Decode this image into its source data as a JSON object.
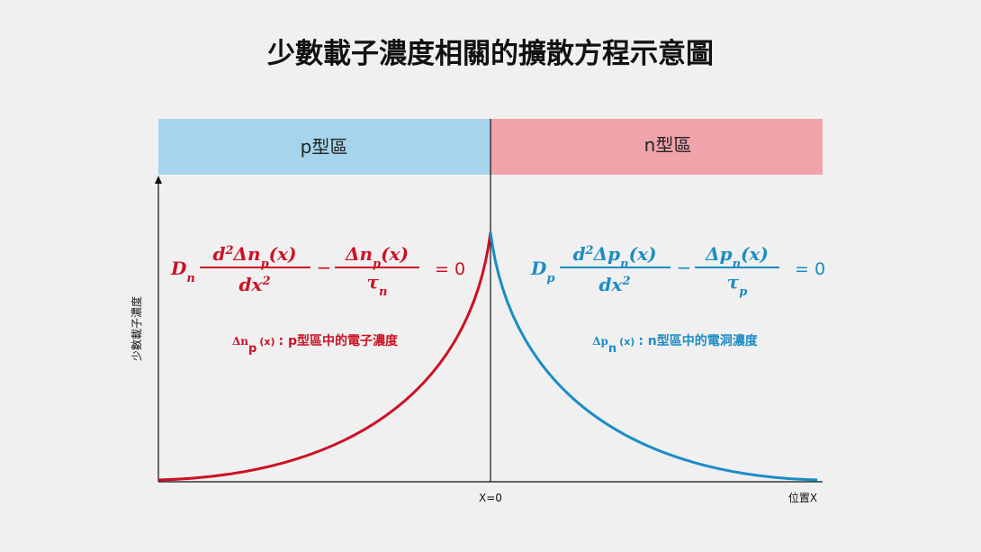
{
  "header": {
    "title": "少數載子濃度相關的擴散方程示意圖"
  },
  "regions": [
    {
      "label": "p型區"
    },
    {
      "label": "n型區"
    }
  ],
  "axes": {
    "y_label": "少數載子濃度",
    "x_origin": "X=0",
    "x_label": "位置X"
  },
  "equations": [
    {
      "coef": "D",
      "coef_sub": "n",
      "num_d": "d",
      "num_sup": "2",
      "num_var": "Δn",
      "num_sub": "p",
      "num_arg": "(x)",
      "den": "dx",
      "den_sup": "2",
      "minus": "−",
      "num2_var": "Δn",
      "num2_sub": "p",
      "num2_arg": "(x)",
      "den2": "τ",
      "den2_sub": "n",
      "rhs": "= 0",
      "note_var": "Δn",
      "note_sub": "p",
      "note_arg": "(x)",
      "note_text": ": p型區中的電子濃度"
    },
    {
      "coef": "D",
      "coef_sub": "p",
      "num_d": "d",
      "num_sup": "2",
      "num_var": "Δp",
      "num_sub": "n",
      "num_arg": "(x)",
      "den": "dx",
      "den_sup": "2",
      "minus": "−",
      "num2_var": "Δp",
      "num2_sub": "n",
      "num2_arg": "(x)",
      "den2": "τ",
      "den2_sub": "p",
      "rhs": "= 0",
      "note_var": "Δp",
      "note_sub": "n",
      "note_arg": "(x)",
      "note_text": ": n型區中的電洞濃度"
    }
  ]
}
